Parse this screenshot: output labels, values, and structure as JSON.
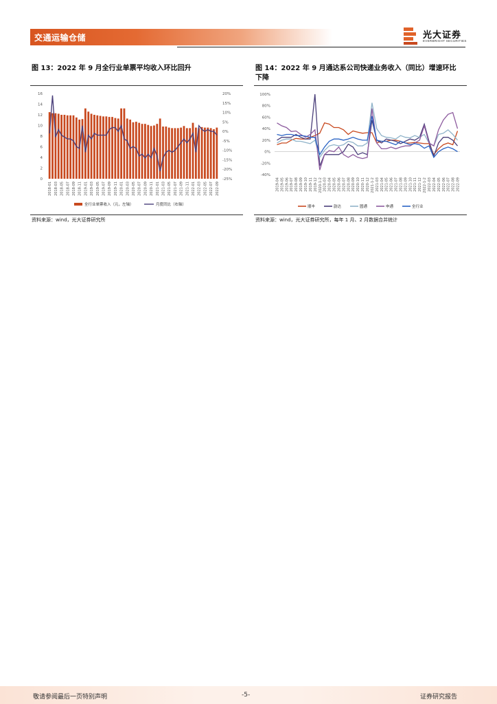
{
  "header": {
    "section_title": "交通运输仓储",
    "logo_cn": "光大证券",
    "logo_en": "EVERBRIGHT SECURITIES",
    "brand_color": "#e0622a"
  },
  "figure13": {
    "title": "图 13：2022 年 9 月全行业单票平均收入环比回升",
    "source": "资料来源：wind，光大证券研究所"
  },
  "figure14": {
    "title_line1": "图 14：2022 年 9 月通达系公司快递业务收入（同比）增速环比",
    "title_line2": "下降",
    "source": "资料来源：wind，光大证券研究所，每年 1 月、2 月数据合并统计"
  },
  "chart_data": [
    {
      "type": "bar+line",
      "title": "图 13：2022 年 9 月全行业单票平均收入环比回升",
      "categories": [
        "2018-01",
        "2018-02",
        "2018-03",
        "2018-04",
        "2018-05",
        "2018-06",
        "2018-07",
        "2018-08",
        "2018-09",
        "2018-10",
        "2018-11",
        "2018-12",
        "2019-01",
        "2019-02",
        "2019-03",
        "2019-04",
        "2019-05",
        "2019-06",
        "2019-07",
        "2019-08",
        "2019-09",
        "2019-10",
        "2019-11",
        "2019-12",
        "2020-01",
        "2020-02",
        "2020-03",
        "2020-04",
        "2020-05",
        "2020-06",
        "2020-07",
        "2020-08",
        "2020-09",
        "2020-10",
        "2020-11",
        "2020-12",
        "2021-01",
        "2021-02",
        "2021-03",
        "2021-04",
        "2021-05",
        "2021-06",
        "2021-07",
        "2021-08",
        "2021-09",
        "2021-10",
        "2021-11",
        "2021-12",
        "2022-01",
        "2022-02",
        "2022-03",
        "2022-04",
        "2022-05",
        "2022-06",
        "2022-07",
        "2022-08",
        "2022-09"
      ],
      "xtick_labels": [
        "2018-01",
        "2018-03",
        "2018-05",
        "2018-07",
        "2018-09",
        "2018-11",
        "2019-01",
        "2019-03",
        "2019-05",
        "2019-07",
        "2019-09",
        "2019-11",
        "2020-01",
        "2020-03",
        "2020-05",
        "2020-07",
        "2020-09",
        "2020-11",
        "2021-01",
        "2021-03",
        "2021-05",
        "2021-07",
        "2021-09",
        "2021-11",
        "2022-01",
        "2022-03",
        "2022-05",
        "2022-07",
        "2022-09"
      ],
      "series": [
        {
          "name": "全行业单票收入（元，左轴）",
          "axis": "left",
          "kind": "bar",
          "color": "#c8491f",
          "values": [
            12.5,
            12.3,
            12.3,
            12.2,
            12.0,
            12.0,
            11.9,
            11.9,
            11.9,
            11.5,
            11.1,
            11.2,
            13.2,
            12.6,
            12.2,
            12.0,
            11.9,
            11.8,
            11.7,
            11.7,
            11.6,
            11.6,
            11.4,
            11.3,
            13.2,
            13.2,
            11.3,
            11.1,
            10.6,
            10.7,
            10.5,
            10.3,
            10.3,
            10.1,
            9.9,
            10.0,
            10.3,
            11.3,
            9.8,
            9.8,
            9.6,
            9.5,
            9.5,
            9.5,
            9.6,
            9.9,
            9.5,
            9.5,
            10.5,
            9.6,
            9.5,
            9.7,
            9.6,
            9.6,
            9.5,
            9.3,
            9.6
          ]
        },
        {
          "name": "月度同比（右轴）",
          "axis": "right",
          "kind": "line",
          "color": "#4a3f7a",
          "values": [
            -1,
            19,
            -3,
            1,
            -2,
            -3,
            -4,
            -4,
            -5,
            -8,
            -9,
            3,
            -11,
            -2,
            -4,
            -1,
            -2,
            -2,
            -2,
            -2,
            1,
            2,
            2,
            0,
            3,
            -4,
            -5,
            -9,
            -8,
            -9,
            -13,
            -12,
            -14,
            -12,
            -14,
            -9,
            -13,
            -21,
            -14,
            -11,
            -10,
            -11,
            -10,
            -8,
            -6,
            -4,
            -6,
            -4,
            -1,
            -11,
            3,
            1,
            0,
            1,
            0,
            0,
            -2
          ]
        }
      ],
      "ylim_left": [
        0,
        16
      ],
      "yticks_left": [
        "0",
        "2",
        "4",
        "6",
        "8",
        "10",
        "12",
        "14",
        "16"
      ],
      "ylim_right": [
        -25,
        20
      ],
      "yticks_right": [
        "-25%",
        "-20%",
        "-15%",
        "-10%",
        "-5%",
        "0%",
        "5%",
        "10%",
        "15%",
        "20%"
      ],
      "legend": [
        "全行业单票收入（元，左轴）",
        "月度同比（右轴）"
      ]
    },
    {
      "type": "line",
      "title": "图 14：2022 年 9 月通达系公司快递业务收入（同比）增速环比下降",
      "categories": [
        "2019-04",
        "2019-05",
        "2019-06",
        "2019-07",
        "2019-08",
        "2019-09",
        "2019-10",
        "2019-11",
        "2019-12",
        "2020-1-2",
        "2020-03",
        "2020-04",
        "2020-05",
        "2020-06",
        "2020-07",
        "2020-08",
        "2020-09",
        "2020-10",
        "2020-11",
        "2020-12",
        "2021-1-2",
        "2021-03",
        "2021-04",
        "2021-05",
        "2021-06",
        "2021-07",
        "2021-08",
        "2021-09",
        "2021-10",
        "2021-11",
        "2021-12",
        "2022-1-2",
        "2022-03",
        "2022-04",
        "2022-05",
        "2022-06",
        "2022-07",
        "2022-08",
        "2022-09"
      ],
      "series": [
        {
          "name": "顺丰",
          "color": "#c8491f",
          "values": [
            12,
            15,
            15,
            20,
            23,
            22,
            22,
            25,
            28,
            32,
            50,
            48,
            42,
            42,
            38,
            30,
            36,
            34,
            32,
            33,
            33,
            15,
            18,
            18,
            20,
            20,
            18,
            15,
            15,
            16,
            15,
            14,
            14,
            -5,
            5,
            12,
            15,
            12,
            36
          ]
        },
        {
          "name": "韵达",
          "color": "#4a3f7a",
          "values": [
            20,
            25,
            25,
            25,
            30,
            25,
            22,
            22,
            100,
            -25,
            -5,
            -5,
            -5,
            -5,
            0,
            13,
            8,
            -5,
            -2,
            -5,
            55,
            20,
            15,
            22,
            20,
            18,
            14,
            18,
            22,
            20,
            25,
            48,
            18,
            -8,
            15,
            25,
            25,
            20,
            10
          ]
        },
        {
          "name": "圆通",
          "color": "#8fb3c9",
          "values": [
            15,
            20,
            22,
            22,
            18,
            18,
            16,
            14,
            20,
            -10,
            2,
            10,
            12,
            10,
            12,
            18,
            16,
            10,
            10,
            15,
            85,
            40,
            28,
            25,
            24,
            22,
            28,
            25,
            24,
            28,
            25,
            30,
            15,
            10,
            30,
            32,
            38,
            30,
            20
          ]
        },
        {
          "name": "申通",
          "color": "#8c5a9e",
          "values": [
            50,
            45,
            42,
            35,
            36,
            30,
            25,
            30,
            38,
            -32,
            -5,
            2,
            0,
            8,
            -5,
            -10,
            -5,
            -10,
            -12,
            -10,
            75,
            15,
            5,
            5,
            8,
            5,
            8,
            10,
            10,
            15,
            20,
            45,
            15,
            10,
            38,
            55,
            65,
            68,
            40
          ]
        },
        {
          "name": "全行业",
          "color": "#2a63c4",
          "values": [
            30,
            28,
            30,
            30,
            28,
            28,
            27,
            25,
            25,
            -5,
            8,
            18,
            22,
            22,
            20,
            22,
            25,
            22,
            20,
            20,
            62,
            20,
            18,
            18,
            15,
            12,
            18,
            15,
            12,
            14,
            12,
            6,
            10,
            -10,
            0,
            5,
            8,
            5,
            0
          ]
        }
      ],
      "ylim": [
        -40,
        100
      ],
      "yticks": [
        "-40%",
        "-20%",
        "0%",
        "20%",
        "40%",
        "60%",
        "80%",
        "100%"
      ],
      "legend": [
        "顺丰",
        "韵达",
        "圆通",
        "申通",
        "全行业"
      ]
    }
  ],
  "footer": {
    "disclaimer": "敬请参阅最后一页特别声明",
    "page_number": "-5-",
    "report_type": "证券研究报告"
  }
}
